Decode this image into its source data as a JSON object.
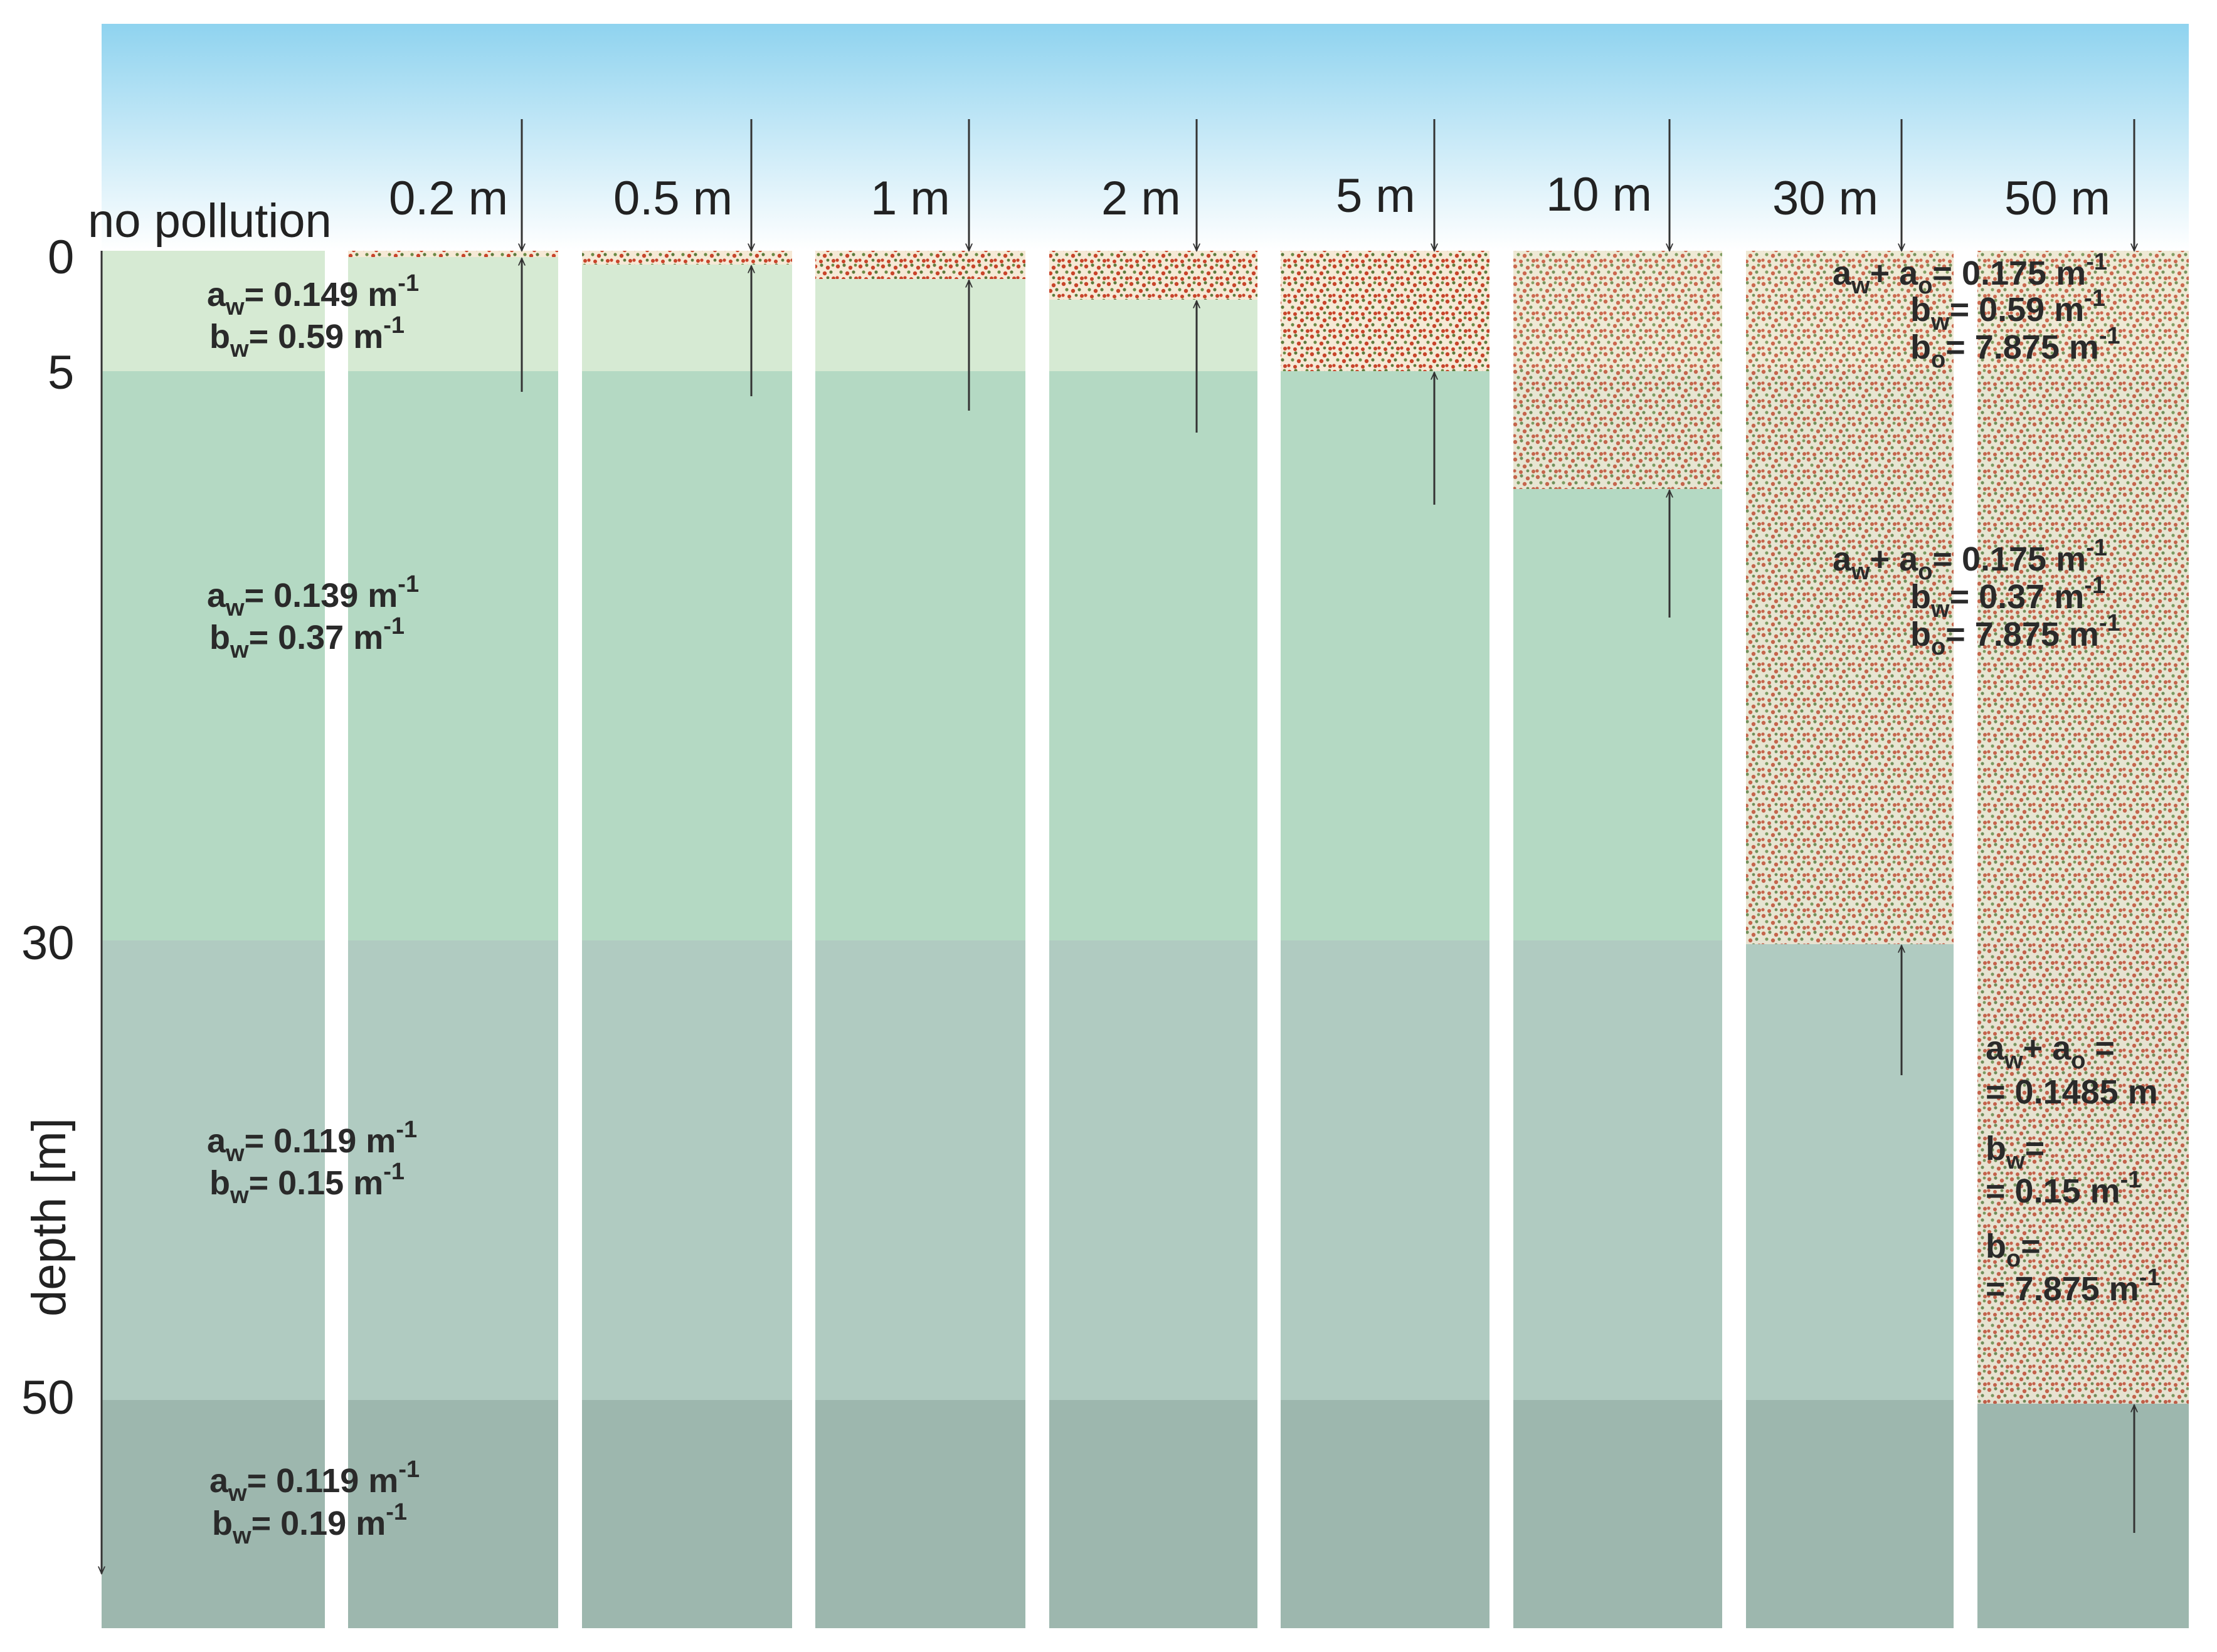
{
  "column_labels": [
    "no pollution",
    "0.2 m",
    "0.5 m",
    "1 m",
    "2 m",
    "5 m",
    "10 m",
    "30 m",
    "50 m"
  ],
  "axis": {
    "title": "depth   [m]",
    "ticks": [
      "0",
      "5",
      "30",
      "50"
    ]
  },
  "layers": {
    "layer1": {
      "a": {
        "sym": "a",
        "sub": "w",
        "val": "= 0.149 m",
        "sup": "-1"
      },
      "b": {
        "sym": "b",
        "sub": "w",
        "val": "= 0.59 m",
        "sup": "-1"
      }
    },
    "layer2": {
      "a": {
        "sym": "a",
        "sub": "w",
        "val": "= 0.139 m",
        "sup": "-1"
      },
      "b": {
        "sym": "b",
        "sub": "w",
        "val": "= 0.37 m",
        "sup": "-1"
      }
    },
    "layer3": {
      "a": {
        "sym": "a",
        "sub": "w",
        "val": "= 0.119 m",
        "sup": "-1"
      },
      "b": {
        "sym": "b",
        "sub": "w",
        "val": "= 0.15 m",
        "sup": "-1"
      }
    },
    "layer4": {
      "a": {
        "sym": "a",
        "sub": "w",
        "val": "= 0.119 m",
        "sup": "-1"
      },
      "b": {
        "sym": "b",
        "sub": "w",
        "val": "= 0.19 m",
        "sup": "-1"
      }
    }
  },
  "oil": {
    "upper": {
      "a": {
        "sym": "a",
        "sub": "w",
        "plus": "+ a",
        "sub2": "o",
        "val": "= 0.175 m",
        "sup": "-1"
      },
      "bw": {
        "sym": "b",
        "sub": "w",
        "val": "= 0.59 m",
        "sup": "-1"
      },
      "bo": {
        "sym": "b",
        "sub": "o",
        "val": "= 7.875 m",
        "sup": "-1"
      }
    },
    "middle": {
      "a": {
        "sym": "a",
        "sub": "w",
        "plus": "+ a",
        "sub2": "o",
        "val": "= 0.175 m",
        "sup": "-1"
      },
      "bw": {
        "sym": "b",
        "sub": "w",
        "val": "= 0.37 m",
        "sup": "-1"
      },
      "bo": {
        "sym": "b",
        "sub": "o",
        "val": "= 7.875 m",
        "sup": "-1"
      }
    },
    "lower": {
      "a_head": {
        "sym": "a",
        "sub": "w",
        "plus": "+ a",
        "sub2": "o",
        "val": " ="
      },
      "a_val": "= 0.1485 m",
      "bw_head": {
        "sym": "b",
        "sub": "w",
        "val": "="
      },
      "bw_val": {
        "val": "= 0.15 m",
        "sup": "-1"
      },
      "bo_head": {
        "sym": "b",
        "sub": "o",
        "val": "="
      },
      "bo_val": {
        "val": "= 7.875 m",
        "sup": "-1"
      }
    }
  },
  "colors": {
    "sky_top": "#8fd3ef",
    "sky_bottom": "#ffffff",
    "layer1": "#d6ead3",
    "layer2": "#b4d9c3",
    "layer3": "#b0cbc1",
    "layer4": "#9db7ae",
    "oil_base": "#f6e9d6",
    "oil_dot_red": "#c8442a",
    "oil_dot_green": "#5d7a3c",
    "line": "#333333"
  }
}
